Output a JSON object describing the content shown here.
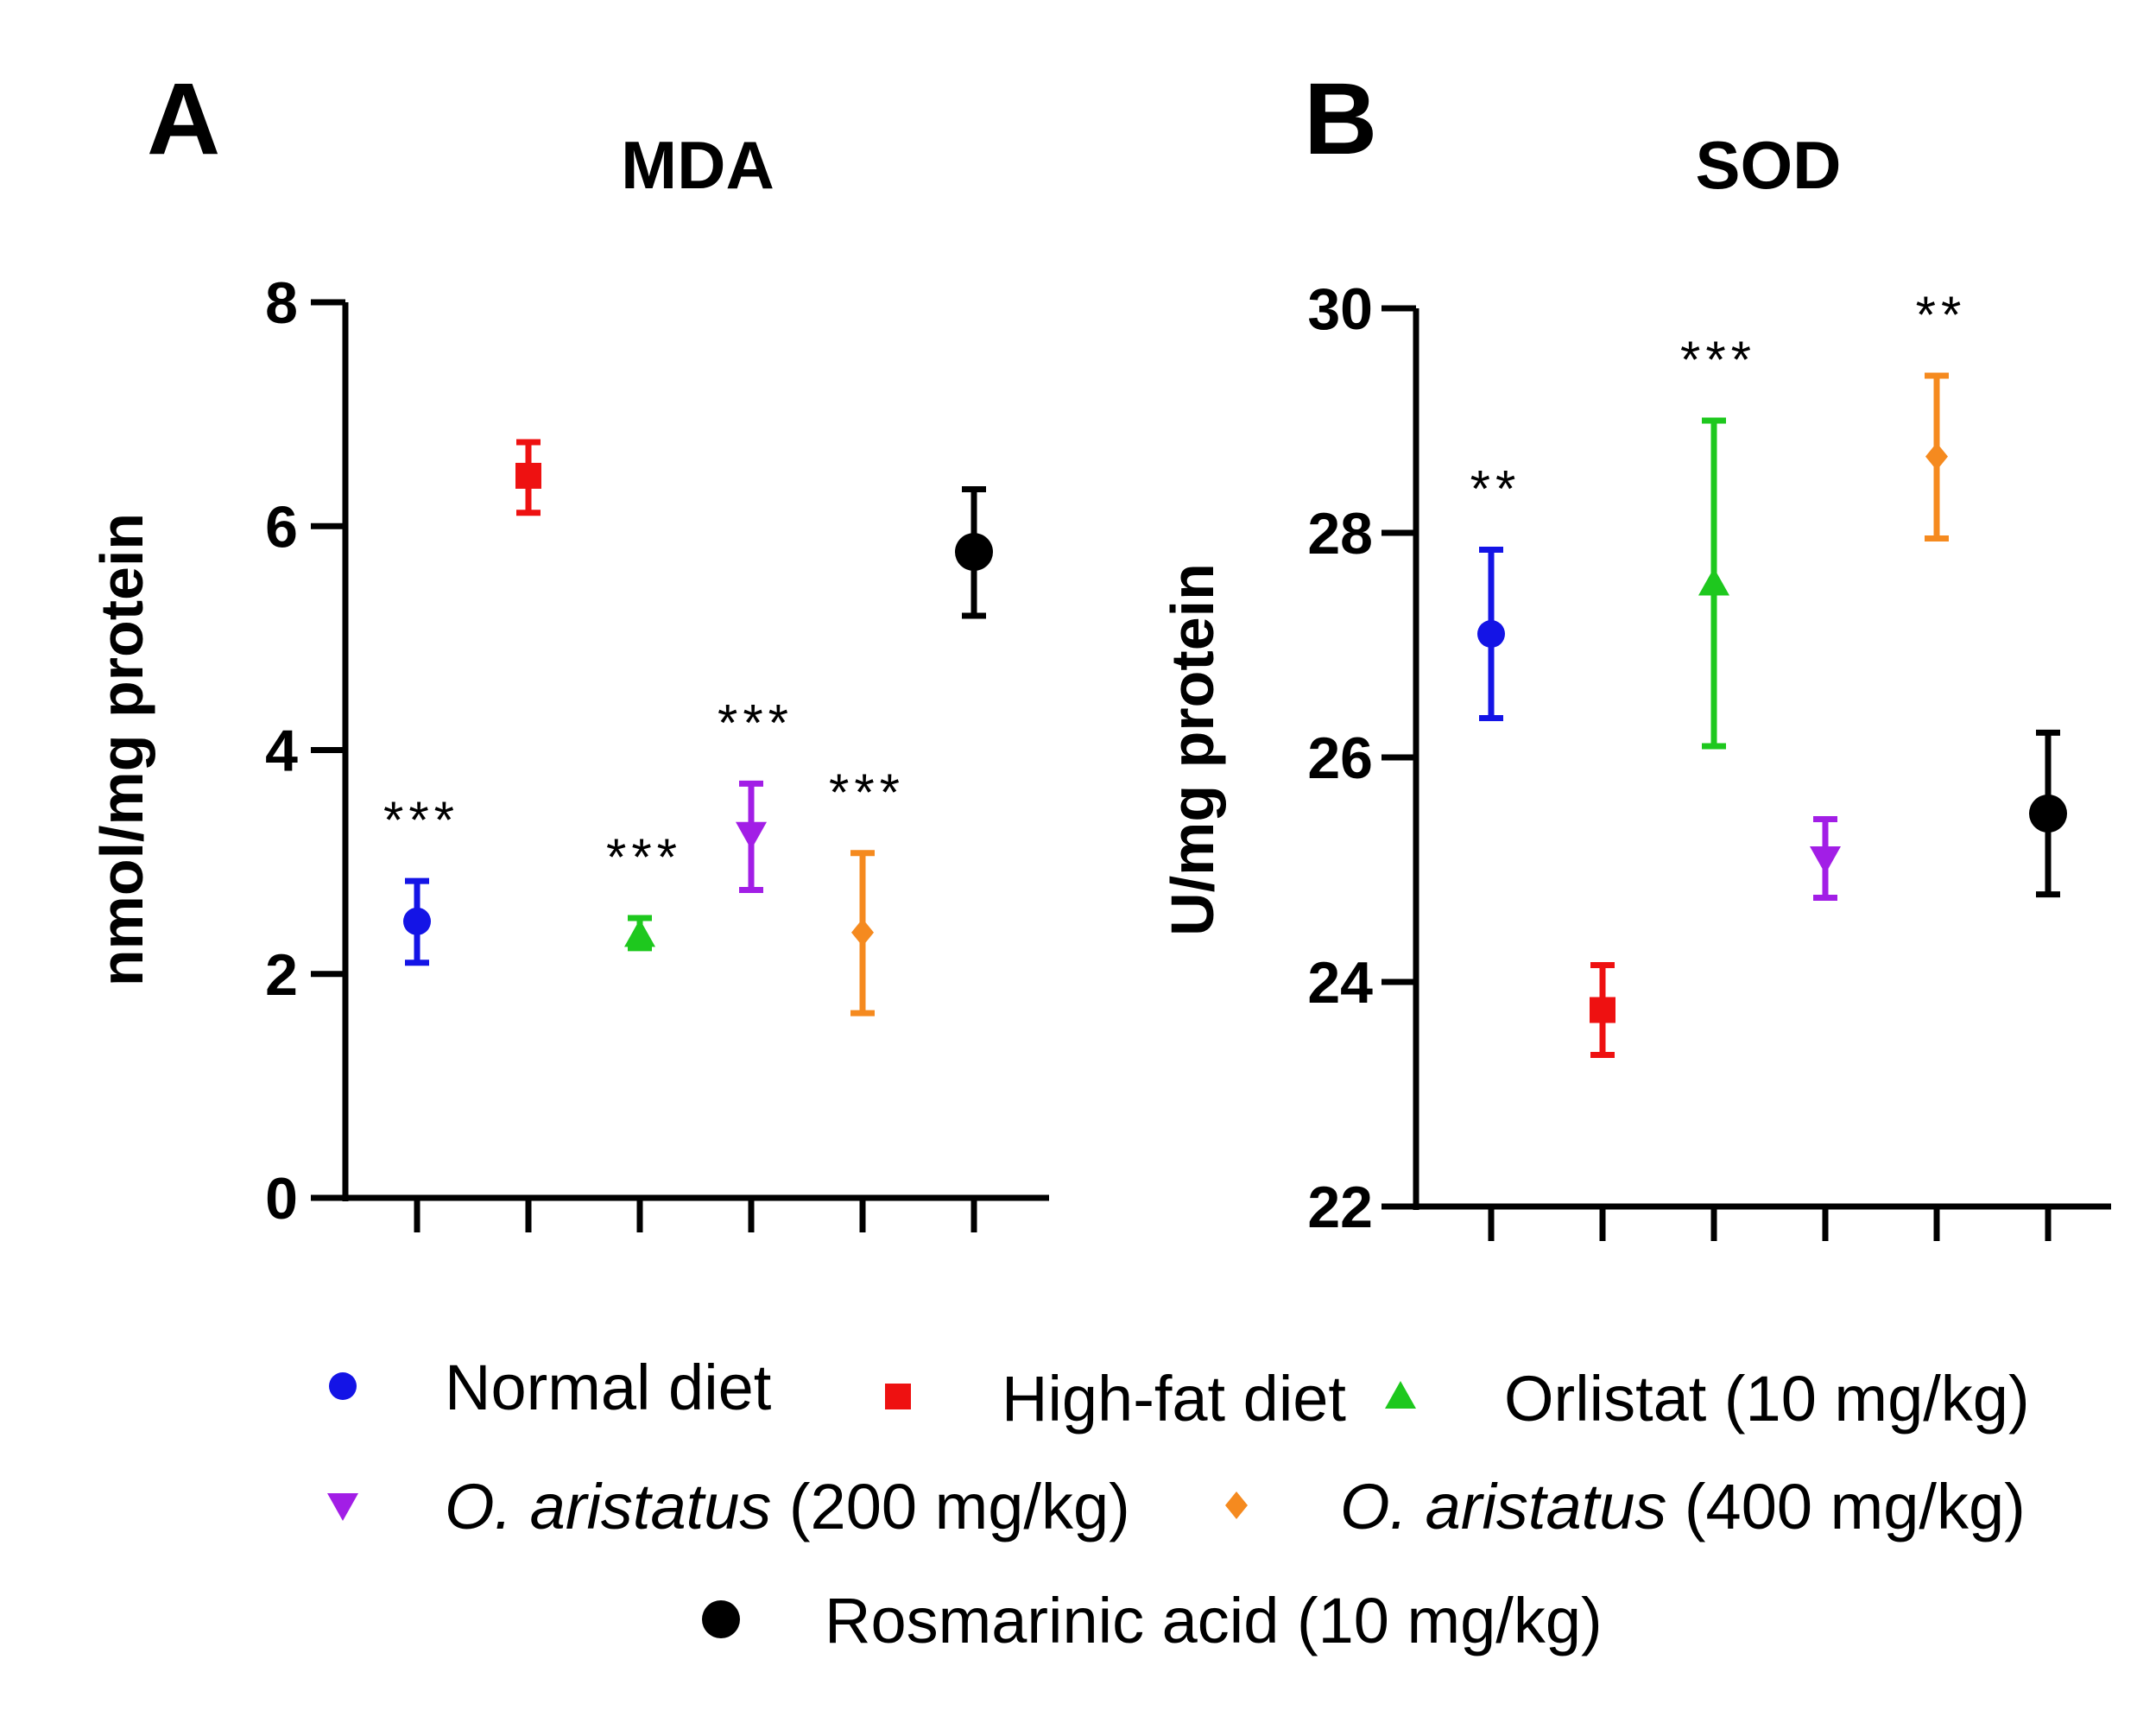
{
  "chart_data": [
    {
      "type": "scatter",
      "panel": "A",
      "title": "MDA",
      "xlabel": "",
      "ylabel": "nmol/mg protein",
      "ylim": [
        0,
        8
      ],
      "yticks": [
        0,
        2,
        4,
        6,
        8
      ],
      "grid": false,
      "series": [
        {
          "name": "Normal diet",
          "value": 2.47,
          "low": 2.1,
          "high": 2.83,
          "sig": "***"
        },
        {
          "name": "High-fat diet",
          "value": 6.45,
          "low": 6.12,
          "high": 6.75,
          "sig": ""
        },
        {
          "name": "Orlistat (10 mg/kg)",
          "value": 2.35,
          "low": 2.23,
          "high": 2.5,
          "sig": "***"
        },
        {
          "name": "O. aristatus (200 mg/kg)",
          "value": 3.25,
          "low": 2.75,
          "high": 3.7,
          "sig": "***"
        },
        {
          "name": "O. aristatus (400 mg/kg)",
          "value": 2.37,
          "low": 1.65,
          "high": 3.08,
          "sig": "***"
        },
        {
          "name": "Rosmarinic acid (10 mg/kg)",
          "value": 5.77,
          "low": 5.2,
          "high": 6.33,
          "sig": ""
        }
      ]
    },
    {
      "type": "scatter",
      "panel": "B",
      "title": "SOD",
      "xlabel": "",
      "ylabel": "U/mg protein",
      "ylim": [
        22,
        30
      ],
      "yticks": [
        22,
        24,
        26,
        28,
        30
      ],
      "grid": false,
      "series": [
        {
          "name": "Normal diet",
          "value": 27.1,
          "low": 26.35,
          "high": 27.85,
          "sig": "**"
        },
        {
          "name": "High-fat diet",
          "value": 23.75,
          "low": 23.35,
          "high": 24.15,
          "sig": ""
        },
        {
          "name": "Orlistat (10 mg/kg)",
          "value": 27.55,
          "low": 26.1,
          "high": 29.0,
          "sig": "***"
        },
        {
          "name": "O. aristatus (200 mg/kg)",
          "value": 25.1,
          "low": 24.75,
          "high": 25.45,
          "sig": ""
        },
        {
          "name": "O. aristatus (400 mg/kg)",
          "value": 28.68,
          "low": 27.95,
          "high": 29.4,
          "sig": "**"
        },
        {
          "name": "Rosmarinic acid (10 mg/kg)",
          "value": 25.5,
          "low": 24.78,
          "high": 26.22,
          "sig": ""
        }
      ]
    }
  ],
  "legend": {
    "items": [
      {
        "name": "Normal diet",
        "italic": "",
        "rest": "Normal diet",
        "color": "#1414e6",
        "marker": "circle"
      },
      {
        "name": "High-fat diet",
        "italic": "",
        "rest": "High-fat diet",
        "color": "#ee1111",
        "marker": "square"
      },
      {
        "name": "Orlistat (10 mg/kg)",
        "italic": "",
        "rest": "Orlistat (10 mg/kg)",
        "color": "#1ec81e",
        "marker": "triangle-up"
      },
      {
        "name": "O. aristatus (200 mg/kg)",
        "italic": "O. aristatus",
        "rest": " (200 mg/kg)",
        "color": "#a21ee6",
        "marker": "triangle-down"
      },
      {
        "name": "O. aristatus (400 mg/kg)",
        "italic": "O. aristatus",
        "rest": " (400 mg/kg)",
        "color": "#f58a1f",
        "marker": "diamond"
      },
      {
        "name": "Rosmarinic acid (10 mg/kg)",
        "italic": "",
        "rest": "Rosmarinic acid (10 mg/kg)",
        "color": "#000000",
        "marker": "circle-large"
      }
    ]
  }
}
